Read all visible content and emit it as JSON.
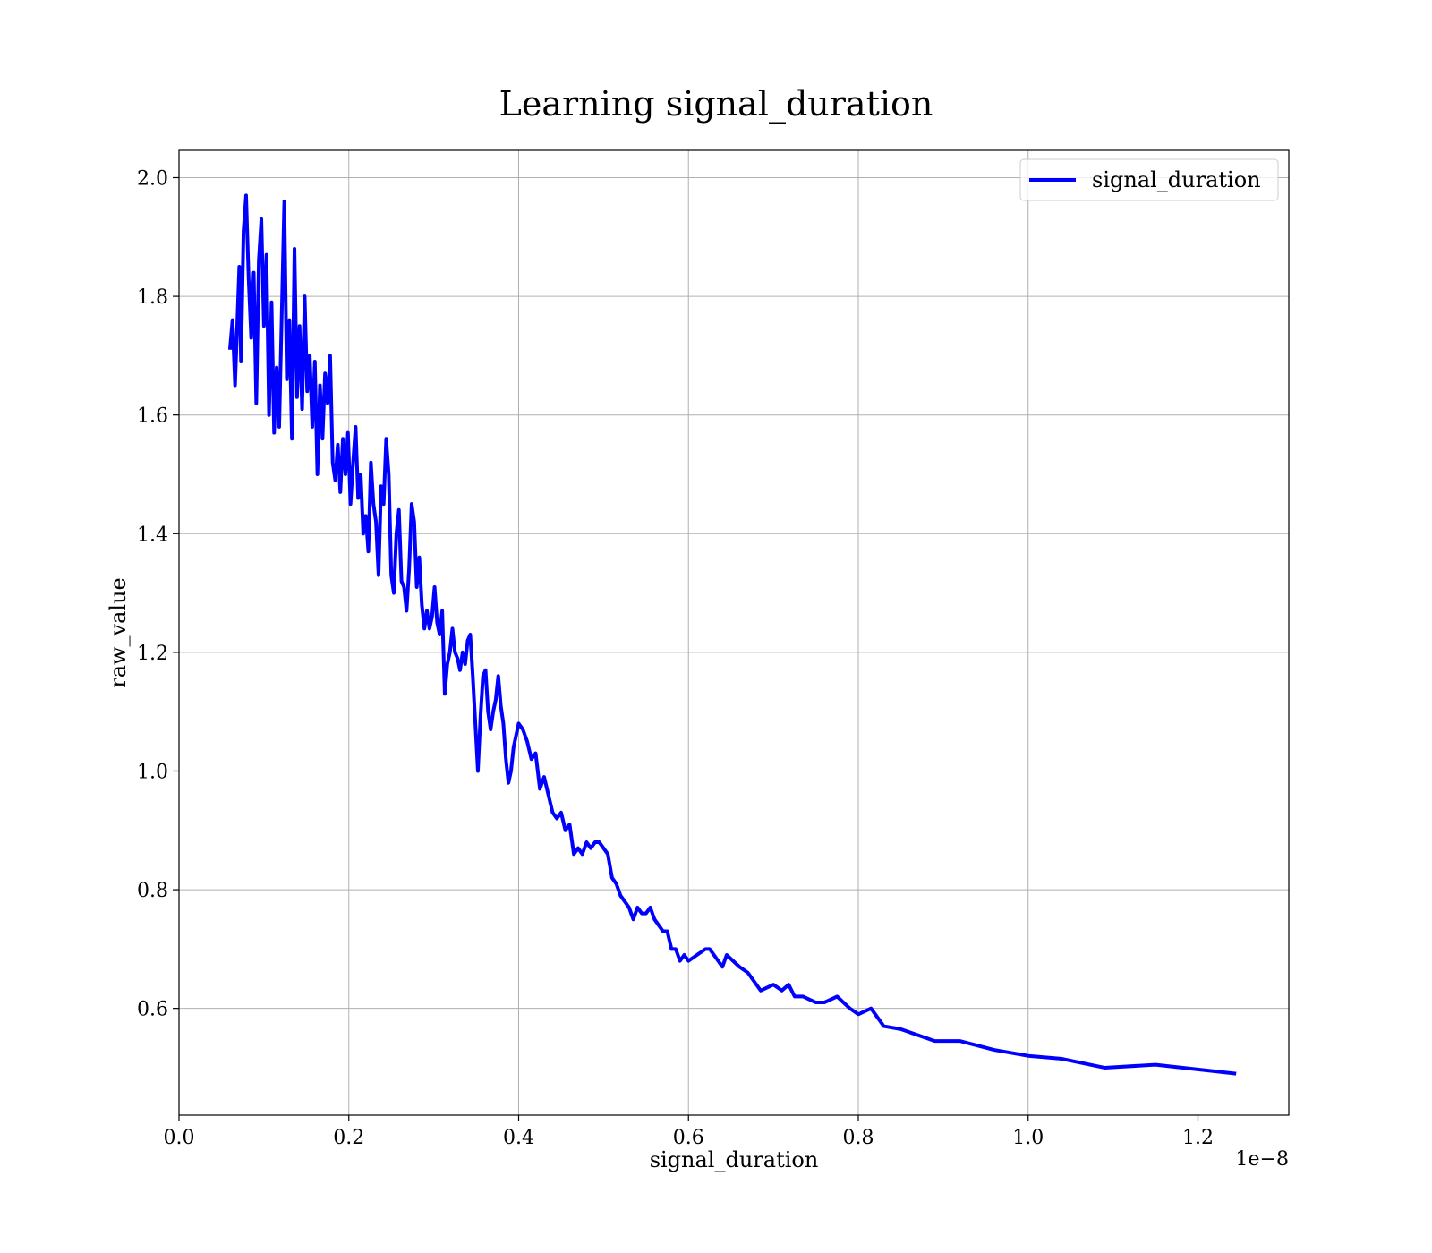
{
  "chart_data": {
    "type": "line",
    "title": "Learning signal_duration",
    "x_label": "signal_duration",
    "y_label": "raw_value",
    "x_offset_label": "1e−8",
    "x": [
      0.06,
      0.063,
      0.066,
      0.069,
      0.071,
      0.073,
      0.076,
      0.079,
      0.082,
      0.085,
      0.088,
      0.091,
      0.094,
      0.097,
      0.1,
      0.103,
      0.106,
      0.109,
      0.112,
      0.115,
      0.118,
      0.121,
      0.124,
      0.127,
      0.13,
      0.133,
      0.136,
      0.139,
      0.142,
      0.145,
      0.148,
      0.151,
      0.154,
      0.157,
      0.16,
      0.163,
      0.166,
      0.169,
      0.172,
      0.175,
      0.178,
      0.181,
      0.184,
      0.187,
      0.19,
      0.193,
      0.196,
      0.199,
      0.202,
      0.205,
      0.208,
      0.211,
      0.214,
      0.217,
      0.22,
      0.223,
      0.226,
      0.229,
      0.232,
      0.235,
      0.238,
      0.241,
      0.244,
      0.247,
      0.25,
      0.253,
      0.256,
      0.259,
      0.262,
      0.265,
      0.268,
      0.271,
      0.274,
      0.277,
      0.28,
      0.283,
      0.286,
      0.289,
      0.292,
      0.295,
      0.298,
      0.301,
      0.304,
      0.307,
      0.31,
      0.313,
      0.316,
      0.319,
      0.322,
      0.325,
      0.328,
      0.331,
      0.334,
      0.337,
      0.34,
      0.343,
      0.346,
      0.349,
      0.352,
      0.355,
      0.358,
      0.361,
      0.364,
      0.367,
      0.37,
      0.373,
      0.376,
      0.379,
      0.382,
      0.385,
      0.388,
      0.391,
      0.394,
      0.397,
      0.4,
      0.405,
      0.41,
      0.415,
      0.42,
      0.425,
      0.43,
      0.435,
      0.44,
      0.445,
      0.45,
      0.455,
      0.46,
      0.465,
      0.47,
      0.475,
      0.48,
      0.485,
      0.49,
      0.495,
      0.5,
      0.505,
      0.51,
      0.515,
      0.52,
      0.525,
      0.53,
      0.535,
      0.54,
      0.545,
      0.55,
      0.555,
      0.56,
      0.57,
      0.575,
      0.58,
      0.585,
      0.59,
      0.595,
      0.6,
      0.61,
      0.62,
      0.625,
      0.63,
      0.64,
      0.645,
      0.66,
      0.67,
      0.675,
      0.685,
      0.7,
      0.71,
      0.718,
      0.725,
      0.735,
      0.75,
      0.76,
      0.775,
      0.79,
      0.8,
      0.815,
      0.83,
      0.85,
      0.87,
      0.89,
      0.92,
      0.96,
      1.0,
      1.04,
      1.09,
      1.15,
      1.245
    ],
    "series": [
      {
        "name": "signal_duration",
        "color": "#0000ff",
        "values": [
          1.71,
          1.76,
          1.65,
          1.77,
          1.85,
          1.69,
          1.91,
          1.97,
          1.83,
          1.73,
          1.84,
          1.62,
          1.86,
          1.93,
          1.75,
          1.87,
          1.6,
          1.79,
          1.57,
          1.68,
          1.58,
          1.77,
          1.96,
          1.66,
          1.76,
          1.56,
          1.88,
          1.63,
          1.75,
          1.61,
          1.8,
          1.64,
          1.7,
          1.58,
          1.69,
          1.5,
          1.65,
          1.56,
          1.67,
          1.62,
          1.7,
          1.52,
          1.49,
          1.55,
          1.47,
          1.56,
          1.5,
          1.57,
          1.45,
          1.52,
          1.58,
          1.46,
          1.5,
          1.4,
          1.43,
          1.37,
          1.52,
          1.45,
          1.42,
          1.33,
          1.48,
          1.45,
          1.56,
          1.5,
          1.33,
          1.3,
          1.4,
          1.44,
          1.32,
          1.31,
          1.27,
          1.34,
          1.45,
          1.42,
          1.31,
          1.36,
          1.28,
          1.24,
          1.27,
          1.24,
          1.26,
          1.31,
          1.25,
          1.23,
          1.27,
          1.13,
          1.18,
          1.2,
          1.24,
          1.2,
          1.19,
          1.17,
          1.2,
          1.18,
          1.22,
          1.23,
          1.16,
          1.08,
          1.0,
          1.09,
          1.16,
          1.17,
          1.1,
          1.07,
          1.1,
          1.12,
          1.16,
          1.11,
          1.08,
          1.02,
          0.98,
          1.0,
          1.04,
          1.06,
          1.08,
          1.07,
          1.05,
          1.02,
          1.03,
          0.97,
          0.99,
          0.96,
          0.93,
          0.92,
          0.93,
          0.9,
          0.91,
          0.86,
          0.87,
          0.86,
          0.88,
          0.87,
          0.88,
          0.88,
          0.87,
          0.86,
          0.82,
          0.81,
          0.79,
          0.78,
          0.77,
          0.75,
          0.77,
          0.76,
          0.76,
          0.77,
          0.75,
          0.73,
          0.73,
          0.7,
          0.7,
          0.68,
          0.69,
          0.68,
          0.69,
          0.7,
          0.7,
          0.69,
          0.67,
          0.69,
          0.67,
          0.66,
          0.65,
          0.63,
          0.64,
          0.63,
          0.64,
          0.62,
          0.62,
          0.61,
          0.61,
          0.62,
          0.6,
          0.59,
          0.6,
          0.57,
          0.565,
          0.555,
          0.545,
          0.545,
          0.53,
          0.52,
          0.515,
          0.5,
          0.505,
          0.49
        ]
      }
    ],
    "xlim": [
      0,
      1.307
    ],
    "ylim": [
      0.42,
      2.046
    ],
    "xticks": [
      {
        "value": 0,
        "label": "0.0"
      },
      0.2,
      0.4,
      0.6,
      0.8,
      {
        "value": 1,
        "label": "1.0"
      },
      1.2
    ],
    "yticks": [
      0.6,
      0.8,
      {
        "value": 1,
        "label": "1.0"
      },
      1.2,
      1.4,
      1.6,
      1.8,
      {
        "value": 2,
        "label": "2.0"
      }
    ],
    "grid": true,
    "legend": "upper right"
  }
}
